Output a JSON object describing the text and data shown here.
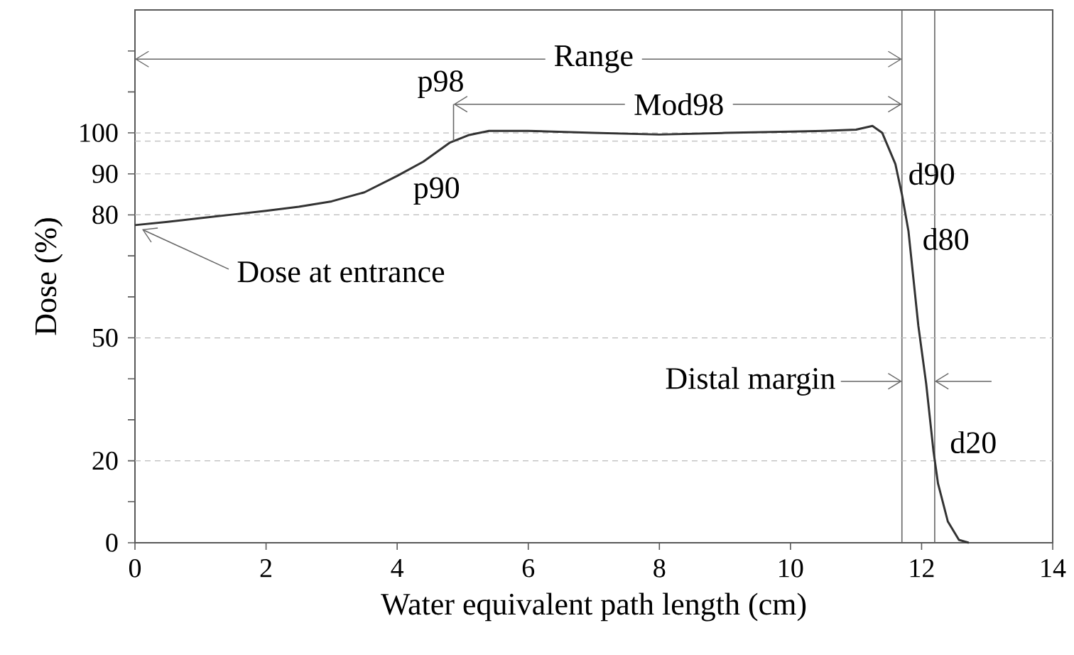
{
  "chart_data": {
    "type": "line",
    "xlabel": "Water equivalent path length (cm)",
    "ylabel": "Dose (%)",
    "xlim": [
      0,
      14
    ],
    "ylim": [
      0,
      130
    ],
    "xticks": [
      0,
      2,
      4,
      6,
      8,
      10,
      12,
      14
    ],
    "yticks": [
      0,
      {
        "value": 10,
        "label": null
      },
      20,
      {
        "value": 30,
        "label": null
      },
      {
        "value": 40,
        "label": null
      },
      50,
      {
        "value": 60,
        "label": null
      },
      {
        "value": 70,
        "label": null
      },
      80,
      90,
      100,
      {
        "value": 110,
        "label": null
      },
      {
        "value": 120,
        "label": null
      }
    ],
    "series": [
      {
        "color": "#333333",
        "x": [
          0,
          0.5,
          1,
          1.5,
          2,
          2.5,
          3,
          3.5,
          4,
          4.4,
          4.8,
          5.1,
          5.4,
          6,
          7,
          8,
          9,
          10,
          10.5,
          11,
          11.25,
          11.4,
          11.6,
          11.7,
          11.8,
          11.95,
          12.07,
          12.18,
          12.25,
          12.4,
          12.57,
          12.72
        ],
        "values": [
          77.5,
          78.3,
          79.2,
          80.1,
          81,
          82,
          83.3,
          85.5,
          89.5,
          93,
          97.6,
          99.5,
          100.5,
          100.5,
          100,
          99.6,
          100,
          100.3,
          100.5,
          100.8,
          101.7,
          100,
          92.4,
          85,
          76,
          53,
          38.8,
          22.5,
          14.5,
          5.2,
          0.7,
          0
        ]
      }
    ],
    "ref_lines": [
      {
        "axis": "x",
        "value": 11.7,
        "color": "#666666",
        "line_style": "solid"
      },
      {
        "axis": "x",
        "value": 12.2,
        "color": "#666666",
        "line_style": "solid"
      },
      {
        "axis": "y",
        "value": 20,
        "color": "#bbbbbb",
        "line_style": "dashed"
      },
      {
        "axis": "y",
        "value": 50,
        "color": "#bbbbbb",
        "line_style": "dashed"
      },
      {
        "axis": "y",
        "value": 80,
        "color": "#bbbbbb",
        "line_style": "dashed"
      },
      {
        "axis": "y",
        "value": 90,
        "color": "#bbbbbb",
        "line_style": "dashed"
      },
      {
        "axis": "y",
        "value": 98,
        "color": "#bbbbbb",
        "line_style": "dashed"
      },
      {
        "axis": "y",
        "value": 100,
        "color": "#bbbbbb",
        "line_style": "dashed"
      }
    ],
    "annotations": [
      {
        "text": "Range",
        "x": 11.7,
        "y": 118
      },
      {
        "text": "Mod98",
        "x": 11.7,
        "y": 107
      },
      {
        "text": "p98",
        "x": 4.86,
        "y": 98
      },
      {
        "text": "p90",
        "x": 4.06,
        "y": 90
      },
      {
        "text": "d90",
        "x": 11.63,
        "y": 90
      },
      {
        "text": "d80",
        "x": 11.76,
        "y": 80
      },
      {
        "text": "Dose at entrance",
        "x": 0,
        "y": 77.5
      },
      {
        "text": "Distal margin",
        "x": 11.7,
        "y": 39.4
      },
      {
        "text": "d20",
        "x": 12.2,
        "y": 20
      }
    ]
  }
}
